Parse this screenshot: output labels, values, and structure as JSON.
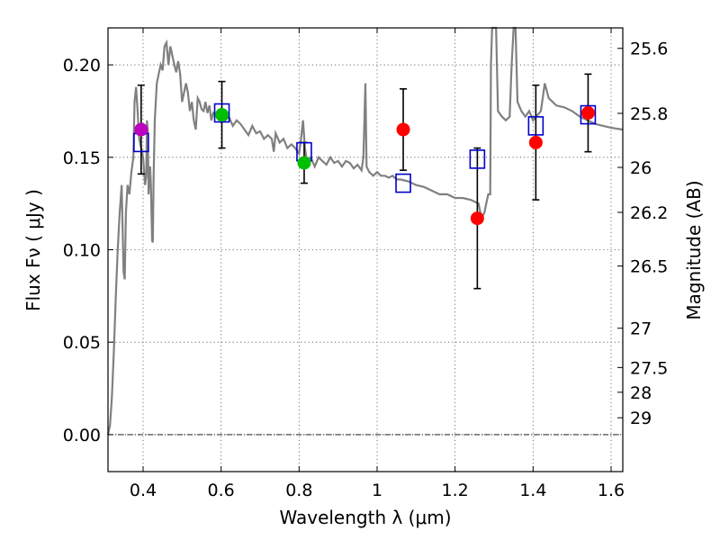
{
  "chart_data": {
    "type": "scatter",
    "xlabel": "Wavelength  λ (μm)",
    "ylabel": "Flux  Fν  ( μJy )",
    "y2label": "Magnitude (AB)",
    "xlim": [
      0.31,
      1.63
    ],
    "ylim": [
      -0.02,
      0.22
    ],
    "grid": true,
    "x_ticks": [
      "0.4",
      "0.6",
      "0.8",
      "1",
      "1.2",
      "1.4",
      "1.6"
    ],
    "y_ticks": [
      "0.00",
      "0.05",
      "0.10",
      "0.15",
      "0.20"
    ],
    "mag_ticks": [
      "25.6",
      "25.8",
      "26",
      "26.2",
      "26.5",
      "27",
      "27.5",
      "28",
      "29"
    ],
    "colors": {
      "template": "#808080",
      "model_box": "#0000cc",
      "obs_magenta": "#bf00bf",
      "obs_green": "#00bf00",
      "obs_red": "#ff0000",
      "errorbar": "#000000",
      "zero_line": "#000000"
    },
    "series": [
      {
        "name": "template_spectrum",
        "style": "line",
        "points": [
          [
            0.31,
            0.0
          ],
          [
            0.315,
            0.005
          ],
          [
            0.32,
            0.02
          ],
          [
            0.325,
            0.045
          ],
          [
            0.33,
            0.075
          ],
          [
            0.335,
            0.1
          ],
          [
            0.34,
            0.12
          ],
          [
            0.345,
            0.135
          ],
          [
            0.35,
            0.088
          ],
          [
            0.353,
            0.084
          ],
          [
            0.356,
            0.12
          ],
          [
            0.36,
            0.135
          ],
          [
            0.365,
            0.13
          ],
          [
            0.37,
            0.142
          ],
          [
            0.375,
            0.15
          ],
          [
            0.378,
            0.18
          ],
          [
            0.382,
            0.188
          ],
          [
            0.386,
            0.175
          ],
          [
            0.39,
            0.16
          ],
          [
            0.395,
            0.155
          ],
          [
            0.4,
            0.15
          ],
          [
            0.405,
            0.135
          ],
          [
            0.408,
            0.14
          ],
          [
            0.41,
            0.17
          ],
          [
            0.412,
            0.165
          ],
          [
            0.414,
            0.13
          ],
          [
            0.418,
            0.145
          ],
          [
            0.42,
            0.135
          ],
          [
            0.423,
            0.105
          ],
          [
            0.425,
            0.104
          ],
          [
            0.427,
            0.14
          ],
          [
            0.43,
            0.17
          ],
          [
            0.435,
            0.19
          ],
          [
            0.44,
            0.195
          ],
          [
            0.445,
            0.2
          ],
          [
            0.45,
            0.197
          ],
          [
            0.455,
            0.21
          ],
          [
            0.46,
            0.212
          ],
          [
            0.465,
            0.2
          ],
          [
            0.47,
            0.21
          ],
          [
            0.475,
            0.205
          ],
          [
            0.48,
            0.2
          ],
          [
            0.485,
            0.196
          ],
          [
            0.49,
            0.202
          ],
          [
            0.495,
            0.195
          ],
          [
            0.5,
            0.18
          ],
          [
            0.505,
            0.185
          ],
          [
            0.51,
            0.19
          ],
          [
            0.515,
            0.185
          ],
          [
            0.52,
            0.175
          ],
          [
            0.525,
            0.18
          ],
          [
            0.53,
            0.17
          ],
          [
            0.535,
            0.165
          ],
          [
            0.54,
            0.182
          ],
          [
            0.545,
            0.18
          ],
          [
            0.55,
            0.176
          ],
          [
            0.555,
            0.175
          ],
          [
            0.56,
            0.18
          ],
          [
            0.565,
            0.174
          ],
          [
            0.57,
            0.178
          ],
          [
            0.575,
            0.17
          ],
          [
            0.58,
            0.174
          ],
          [
            0.59,
            0.172
          ],
          [
            0.6,
            0.175
          ],
          [
            0.61,
            0.17
          ],
          [
            0.62,
            0.172
          ],
          [
            0.63,
            0.167
          ],
          [
            0.64,
            0.17
          ],
          [
            0.65,
            0.168
          ],
          [
            0.66,
            0.165
          ],
          [
            0.67,
            0.162
          ],
          [
            0.68,
            0.167
          ],
          [
            0.69,
            0.163
          ],
          [
            0.7,
            0.164
          ],
          [
            0.71,
            0.16
          ],
          [
            0.72,
            0.162
          ],
          [
            0.73,
            0.16
          ],
          [
            0.735,
            0.153
          ],
          [
            0.74,
            0.163
          ],
          [
            0.75,
            0.158
          ],
          [
            0.76,
            0.16
          ],
          [
            0.77,
            0.155
          ],
          [
            0.78,
            0.157
          ],
          [
            0.79,
            0.155
          ],
          [
            0.8,
            0.152
          ],
          [
            0.805,
            0.16
          ],
          [
            0.81,
            0.17
          ],
          [
            0.815,
            0.155
          ],
          [
            0.82,
            0.148
          ],
          [
            0.83,
            0.15
          ],
          [
            0.84,
            0.145
          ],
          [
            0.85,
            0.15
          ],
          [
            0.86,
            0.148
          ],
          [
            0.87,
            0.146
          ],
          [
            0.88,
            0.15
          ],
          [
            0.89,
            0.147
          ],
          [
            0.9,
            0.148
          ],
          [
            0.91,
            0.145
          ],
          [
            0.92,
            0.148
          ],
          [
            0.93,
            0.147
          ],
          [
            0.94,
            0.144
          ],
          [
            0.95,
            0.146
          ],
          [
            0.96,
            0.143
          ],
          [
            0.965,
            0.15
          ],
          [
            0.97,
            0.19
          ],
          [
            0.973,
            0.145
          ],
          [
            0.98,
            0.142
          ],
          [
            0.99,
            0.14
          ],
          [
            1.0,
            0.142
          ],
          [
            1.01,
            0.14
          ],
          [
            1.02,
            0.14
          ],
          [
            1.03,
            0.139
          ],
          [
            1.04,
            0.14
          ],
          [
            1.05,
            0.138
          ],
          [
            1.06,
            0.138
          ],
          [
            1.08,
            0.137
          ],
          [
            1.1,
            0.135
          ],
          [
            1.12,
            0.134
          ],
          [
            1.14,
            0.132
          ],
          [
            1.16,
            0.13
          ],
          [
            1.18,
            0.13
          ],
          [
            1.2,
            0.128
          ],
          [
            1.22,
            0.128
          ],
          [
            1.24,
            0.127
          ],
          [
            1.26,
            0.125
          ],
          [
            1.265,
            0.12
          ],
          [
            1.27,
            0.118
          ],
          [
            1.275,
            0.12
          ],
          [
            1.28,
            0.125
          ],
          [
            1.285,
            0.13
          ],
          [
            1.29,
            0.13
          ],
          [
            1.292,
            0.2
          ],
          [
            1.295,
            0.22
          ],
          [
            1.3,
            0.22
          ],
          [
            1.305,
            0.22
          ],
          [
            1.31,
            0.175
          ],
          [
            1.32,
            0.172
          ],
          [
            1.33,
            0.17
          ],
          [
            1.34,
            0.172
          ],
          [
            1.345,
            0.2
          ],
          [
            1.35,
            0.22
          ],
          [
            1.355,
            0.22
          ],
          [
            1.36,
            0.18
          ],
          [
            1.37,
            0.175
          ],
          [
            1.38,
            0.172
          ],
          [
            1.39,
            0.175
          ],
          [
            1.4,
            0.17
          ],
          [
            1.42,
            0.175
          ],
          [
            1.43,
            0.19
          ],
          [
            1.44,
            0.182
          ],
          [
            1.45,
            0.18
          ],
          [
            1.46,
            0.178
          ],
          [
            1.48,
            0.177
          ],
          [
            1.5,
            0.175
          ],
          [
            1.52,
            0.172
          ],
          [
            1.54,
            0.17
          ],
          [
            1.56,
            0.168
          ],
          [
            1.58,
            0.167
          ],
          [
            1.6,
            0.166
          ],
          [
            1.63,
            0.165
          ]
        ]
      },
      {
        "name": "model_boxes",
        "style": "open_square",
        "x": [
          0.395,
          0.602,
          0.813,
          1.067,
          1.257,
          1.407,
          1.541
        ],
        "y": [
          0.158,
          0.174,
          0.153,
          0.136,
          0.149,
          0.167,
          0.173
        ]
      },
      {
        "name": "observed_photometry",
        "style": "filled_circle_with_errorbars",
        "points": [
          {
            "x": 0.395,
            "y": 0.165,
            "err": 0.024,
            "color": "magenta"
          },
          {
            "x": 0.602,
            "y": 0.173,
            "err": 0.018,
            "color": "green"
          },
          {
            "x": 0.813,
            "y": 0.147,
            "err": 0.011,
            "color": "green"
          },
          {
            "x": 1.067,
            "y": 0.165,
            "err": 0.022,
            "color": "red"
          },
          {
            "x": 1.257,
            "y": 0.117,
            "err": 0.038,
            "color": "red"
          },
          {
            "x": 1.407,
            "y": 0.158,
            "err": 0.031,
            "color": "red"
          },
          {
            "x": 1.541,
            "y": 0.174,
            "err": 0.021,
            "color": "red"
          }
        ]
      }
    ]
  }
}
